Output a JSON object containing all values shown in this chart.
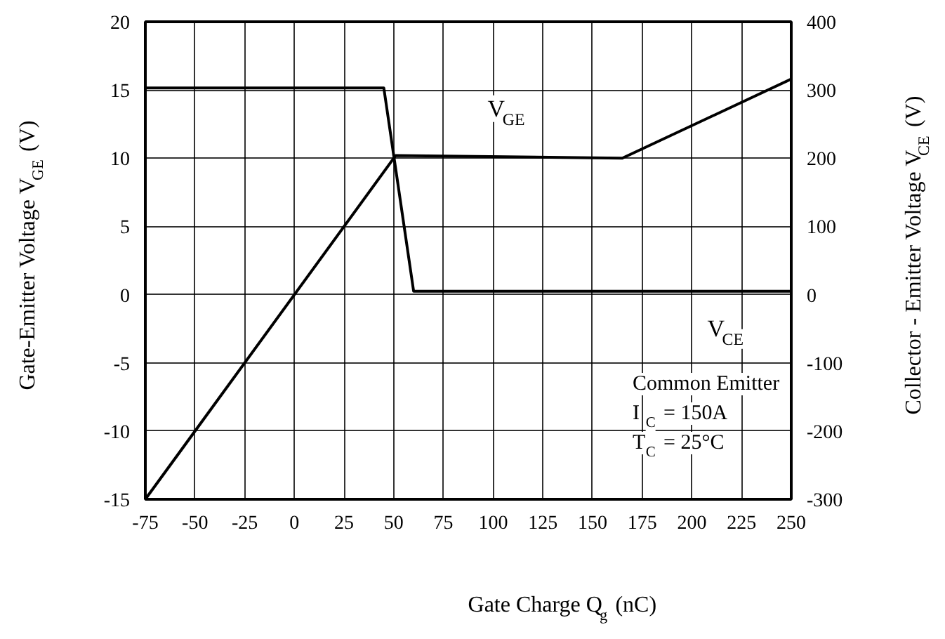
{
  "chart_data": {
    "type": "line",
    "xlabel": "Gate Charge  Q$_{g}$ (nC)",
    "ylabel": "Gate-Emitter Voltage  V$_{GE}$ (V)",
    "y2label": "Collector - Emitter Voltage  V$_{CE}$ (V)",
    "series": [
      {
        "name": "V$_{GE}$",
        "color": "#000000",
        "x": [
          -75,
          51,
          165,
          250
        ],
        "values": [
          -15,
          10.2,
          10,
          15.8
        ]
      },
      {
        "name": "V$_{CE}$",
        "color": "#000000",
        "axis": "y2",
        "x": [
          -75,
          45,
          60,
          250
        ],
        "values": [
          303,
          303,
          5,
          5
        ]
      }
    ],
    "xlim": [
      -75,
      250
    ],
    "xticks": [
      -75,
      -50,
      -25,
      0,
      25,
      50,
      75,
      100,
      125,
      150,
      175,
      200,
      225,
      250
    ],
    "ylim": [
      -15,
      20
    ],
    "yticks": [
      -15,
      -10,
      -5,
      0,
      5,
      10,
      15,
      20
    ],
    "y2lim": [
      -300,
      400
    ],
    "y2ticks": [
      -300,
      -200,
      -100,
      0,
      100,
      200,
      300,
      400
    ],
    "grid": true,
    "line_style": "solid",
    "annotations": [
      "Common Emitter",
      "I$_{C}$ = 150A",
      "T$_{C}$ = 25°C"
    ]
  }
}
